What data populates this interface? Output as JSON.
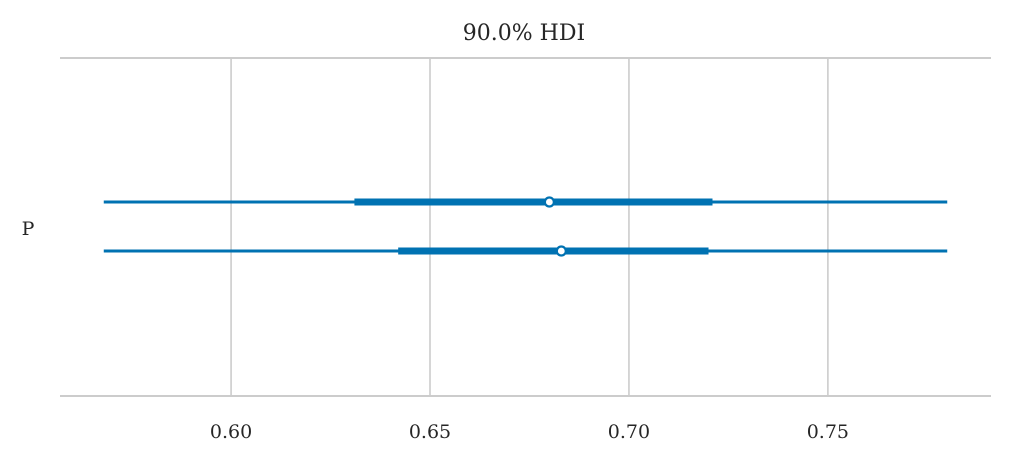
{
  "chart_data": {
    "type": "forest",
    "title": "90.0% HDI",
    "xlabel": "",
    "ylabel": "",
    "variable": "P",
    "xlim": [
      0.557,
      0.791
    ],
    "xticks": [
      0.6,
      0.65,
      0.7,
      0.75
    ],
    "xtick_labels": [
      "0.60",
      "0.65",
      "0.70",
      "0.75"
    ],
    "grid": "vertical",
    "colors": {
      "series": "#0072b2",
      "grid": "#cccccc",
      "spine": "#cccccc",
      "text": "#262626",
      "marker_fill": "#ffffff"
    },
    "series": [
      {
        "hdi_low": 0.568,
        "hdi_high": 0.78,
        "iqr_low": 0.631,
        "iqr_high": 0.721,
        "point": 0.68
      },
      {
        "hdi_low": 0.568,
        "hdi_high": 0.78,
        "iqr_low": 0.642,
        "iqr_high": 0.72,
        "point": 0.683
      }
    ]
  }
}
